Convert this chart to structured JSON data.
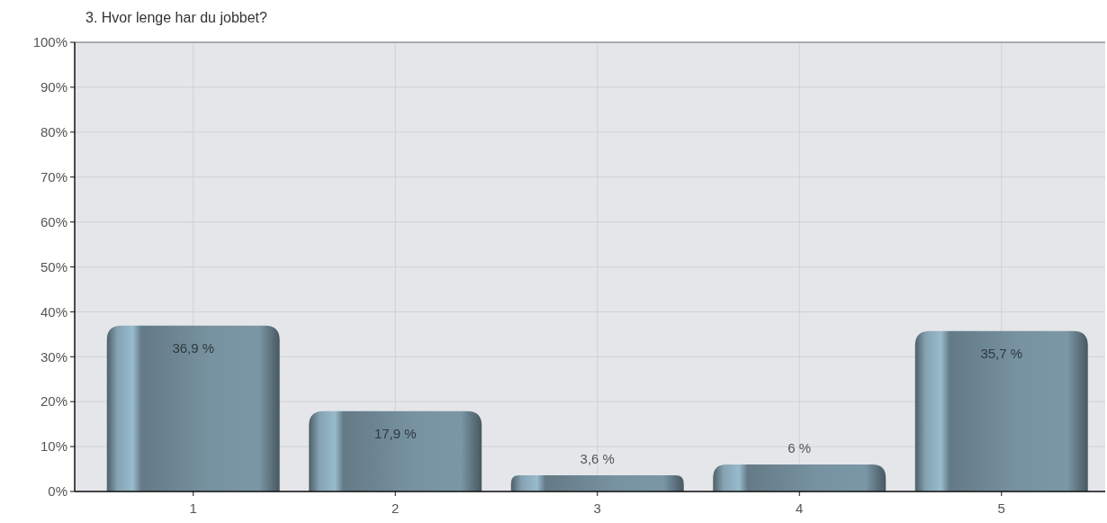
{
  "chart_data": {
    "type": "bar",
    "title": "3. Hvor lenge har du jobbet?",
    "categories": [
      "1",
      "2",
      "3",
      "4",
      "5"
    ],
    "values": [
      36.9,
      17.9,
      3.6,
      6,
      35.7
    ],
    "color": "#6b8390",
    "value_labels": [
      "36,9 %",
      "17,9 %",
      "3,6 %",
      "6 %",
      "35,7 %"
    ],
    "ylim": [
      0,
      100
    ],
    "yticks": [
      {
        "value": 0,
        "label": "0%"
      },
      {
        "value": 10,
        "label": "10%"
      },
      {
        "value": 20,
        "label": "20%"
      },
      {
        "value": 30,
        "label": "30%"
      },
      {
        "value": 40,
        "label": "40%"
      },
      {
        "value": 50,
        "label": "50%"
      },
      {
        "value": 60,
        "label": "60%"
      },
      {
        "value": 70,
        "label": "70%"
      },
      {
        "value": 80,
        "label": "80%"
      },
      {
        "value": 90,
        "label": "90%"
      },
      {
        "value": 100,
        "label": "100%"
      }
    ],
    "grid": true
  }
}
